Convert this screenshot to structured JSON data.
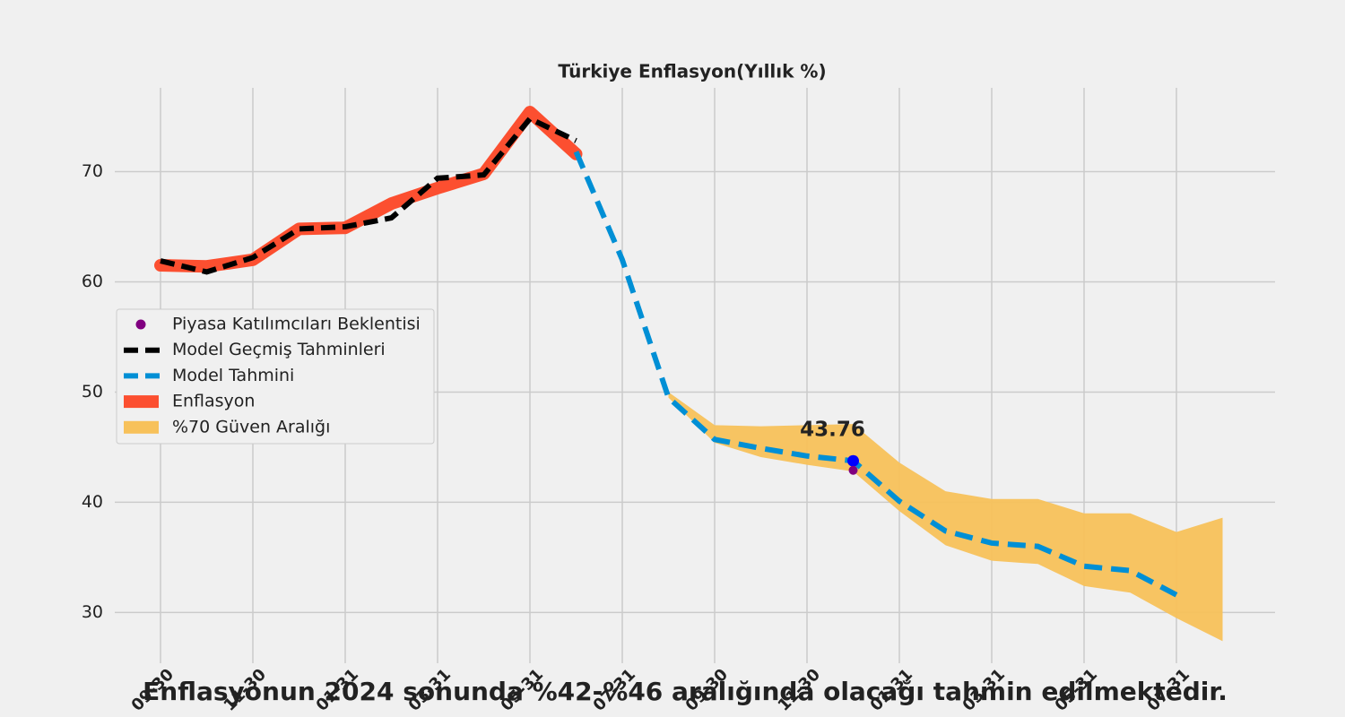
{
  "chart_data": {
    "type": "line",
    "title": "Türkiye Enflasyon(Yıllık %)",
    "footnote": "Enflasyonun 2024 sonunda %42-%46 aralığında olacağı tahmin edilmektedir.",
    "categories": [
      "09-30",
      null,
      "11-30",
      null,
      "01-31",
      null,
      "03-31",
      null,
      "05-31",
      null,
      "07-31",
      null,
      "09-30",
      null,
      "11-30",
      null,
      "01-31",
      null,
      "03-31",
      null,
      "05-31",
      null,
      "07-31",
      null
    ],
    "ylim": [
      25.4,
      77.6
    ],
    "yticks": [
      30,
      40,
      50,
      60,
      70
    ],
    "grid": true,
    "legend": "left",
    "series": [
      {
        "name": "Piyasa Katılımcıları Beklentisi",
        "kind": "scatter",
        "color": "#800080",
        "values": [
          null,
          null,
          null,
          null,
          null,
          null,
          null,
          null,
          null,
          null,
          null,
          null,
          null,
          null,
          null,
          42.9,
          null,
          null,
          null,
          null,
          null,
          null,
          null,
          null
        ]
      },
      {
        "name": "Model Geçmiş Tahminleri",
        "kind": "dashed",
        "color": "#000000",
        "values": [
          61.9,
          60.9,
          62.2,
          64.8,
          65.0,
          65.8,
          69.4,
          69.7,
          74.8,
          72.8,
          null,
          null,
          null,
          null,
          null,
          null,
          null,
          null,
          null,
          null,
          null,
          null,
          null,
          null
        ]
      },
      {
        "name": "Model Tahmini",
        "kind": "dashed",
        "color": "#008fd5",
        "values": [
          null,
          null,
          null,
          null,
          null,
          null,
          null,
          null,
          null,
          71.8,
          62.0,
          49.5,
          45.7,
          44.9,
          44.2,
          43.76,
          40.1,
          37.4,
          36.3,
          36.0,
          34.2,
          33.8,
          31.6,
          null
        ],
        "value_labels": [
          null,
          null,
          null,
          null,
          null,
          null,
          null,
          null,
          null,
          null,
          null,
          null,
          null,
          null,
          null,
          "43.76",
          null,
          null,
          null,
          null,
          null,
          null,
          null,
          null
        ]
      },
      {
        "name": "Enflasyon",
        "kind": "thick",
        "color": "#fc4f30",
        "values": [
          61.5,
          61.4,
          62.0,
          64.8,
          64.9,
          67.1,
          68.5,
          69.8,
          75.4,
          71.6,
          null,
          null,
          null,
          null,
          null,
          null,
          null,
          null,
          null,
          null,
          null,
          null,
          null,
          null
        ]
      },
      {
        "name": "%70 Güven Aralığı",
        "kind": "band",
        "color": "#f7c15a",
        "upper": [
          null,
          null,
          null,
          null,
          null,
          null,
          null,
          null,
          null,
          null,
          null,
          50.0,
          47.0,
          46.9,
          47.0,
          47.1,
          43.6,
          41.0,
          40.3,
          40.3,
          39.0,
          39.0,
          37.3,
          38.6
        ],
        "lower": [
          null,
          null,
          null,
          null,
          null,
          null,
          null,
          null,
          null,
          null,
          null,
          49.5,
          45.4,
          44.1,
          43.4,
          42.8,
          39.2,
          36.1,
          34.7,
          34.4,
          32.4,
          31.8,
          29.5,
          27.4
        ]
      }
    ]
  }
}
